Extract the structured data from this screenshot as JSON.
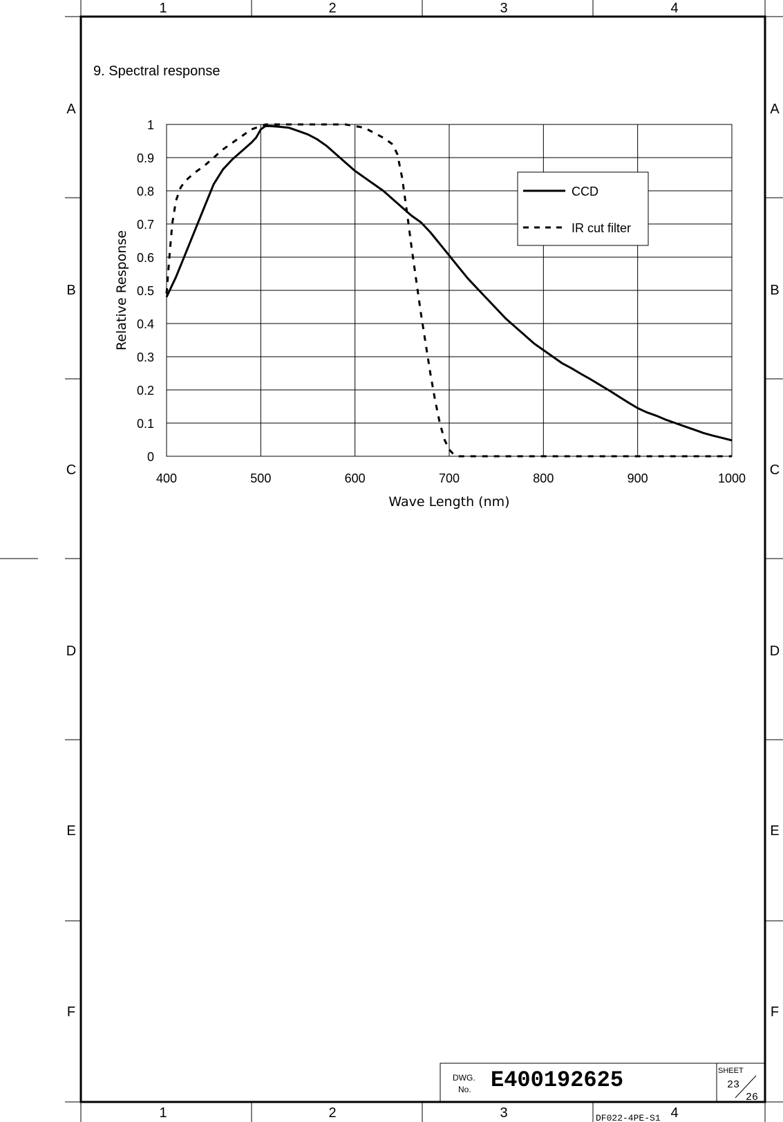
{
  "frame": {
    "columns": [
      "1",
      "2",
      "3",
      "4"
    ],
    "rows": [
      "A",
      "B",
      "C",
      "D",
      "E",
      "F"
    ]
  },
  "section_title": "9. Spectral response",
  "title_block": {
    "dwg_label_1": "DWG.",
    "dwg_label_2": "No.",
    "drawing_number": "E400192625",
    "sheet_label": "SHEET",
    "sheet_current": "23",
    "sheet_total": "26",
    "form_code": "DF022-4PE-S1"
  },
  "chart_data": {
    "type": "line",
    "xlabel": "Wave Length (nm)",
    "ylabel": "Relative Response",
    "xlim": [
      400,
      1000
    ],
    "ylim": [
      0,
      1
    ],
    "xticks": [
      "400",
      "500",
      "600",
      "700",
      "800",
      "900",
      "1000"
    ],
    "yticks": [
      "0",
      "0.1",
      "0.2",
      "0.3",
      "0.4",
      "0.5",
      "0.6",
      "0.7",
      "0.8",
      "0.9",
      "1"
    ],
    "grid": true,
    "legend_position": "top-right",
    "series": [
      {
        "name": "CCD",
        "style": "solid",
        "x": [
          400,
          410,
          420,
          430,
          440,
          450,
          460,
          470,
          480,
          490,
          495,
          500,
          505,
          510,
          520,
          530,
          540,
          550,
          560,
          570,
          580,
          590,
          600,
          610,
          620,
          630,
          640,
          650,
          660,
          670,
          680,
          690,
          700,
          710,
          720,
          730,
          740,
          750,
          760,
          770,
          780,
          790,
          800,
          810,
          820,
          830,
          840,
          850,
          860,
          870,
          880,
          890,
          900,
          910,
          920,
          930,
          940,
          950,
          960,
          970,
          980,
          990,
          1000
        ],
        "y": [
          0.48,
          0.54,
          0.61,
          0.68,
          0.75,
          0.82,
          0.865,
          0.895,
          0.92,
          0.945,
          0.96,
          0.985,
          0.995,
          0.995,
          0.993,
          0.99,
          0.98,
          0.97,
          0.955,
          0.935,
          0.91,
          0.885,
          0.86,
          0.84,
          0.82,
          0.8,
          0.775,
          0.75,
          0.725,
          0.705,
          0.675,
          0.64,
          0.605,
          0.57,
          0.535,
          0.505,
          0.475,
          0.445,
          0.415,
          0.39,
          0.365,
          0.34,
          0.32,
          0.3,
          0.28,
          0.265,
          0.248,
          0.232,
          0.215,
          0.198,
          0.18,
          0.162,
          0.145,
          0.132,
          0.122,
          0.11,
          0.1,
          0.09,
          0.08,
          0.07,
          0.062,
          0.055,
          0.048
        ]
      },
      {
        "name": "IR cut filter",
        "style": "dashed",
        "x": [
          400,
          403,
          406,
          410,
          415,
          420,
          430,
          440,
          450,
          460,
          470,
          480,
          490,
          500,
          505,
          510,
          520,
          540,
          560,
          580,
          590,
          600,
          610,
          620,
          630,
          640,
          645,
          650,
          655,
          660,
          665,
          670,
          675,
          680,
          685,
          690,
          695,
          700,
          705,
          710,
          715,
          720,
          800,
          900,
          1000
        ],
        "y": [
          0.49,
          0.6,
          0.7,
          0.77,
          0.81,
          0.83,
          0.855,
          0.875,
          0.9,
          0.925,
          0.945,
          0.965,
          0.985,
          0.995,
          1.0,
          1.0,
          1.0,
          1.0,
          1.0,
          1.0,
          1.0,
          0.995,
          0.99,
          0.975,
          0.96,
          0.94,
          0.91,
          0.84,
          0.74,
          0.63,
          0.53,
          0.43,
          0.34,
          0.25,
          0.17,
          0.1,
          0.05,
          0.02,
          0.005,
          0.0,
          0.0,
          0.0,
          0.0,
          0.0,
          0.0
        ]
      }
    ]
  }
}
